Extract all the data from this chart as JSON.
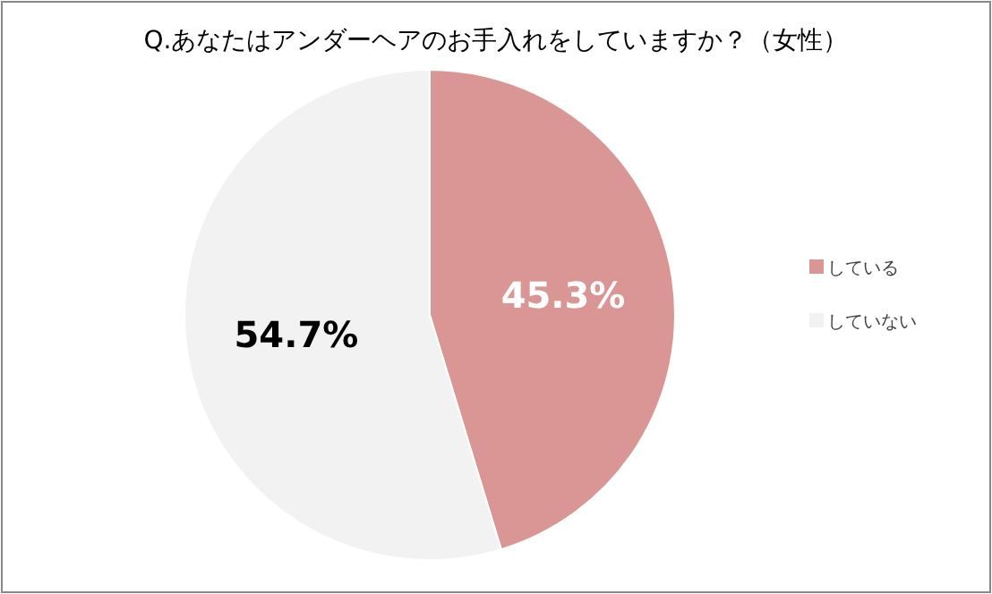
{
  "chart_data": {
    "type": "pie",
    "title": "Q.あなたはアンダーヘアのお手入れをしていますか？（女性）",
    "categories": [
      "している",
      "していない"
    ],
    "values": [
      45.3,
      54.7
    ],
    "colors": [
      "#d99694",
      "#f2f2f2"
    ],
    "value_labels": [
      "45.3%",
      "54.7%"
    ],
    "legend": "right"
  }
}
